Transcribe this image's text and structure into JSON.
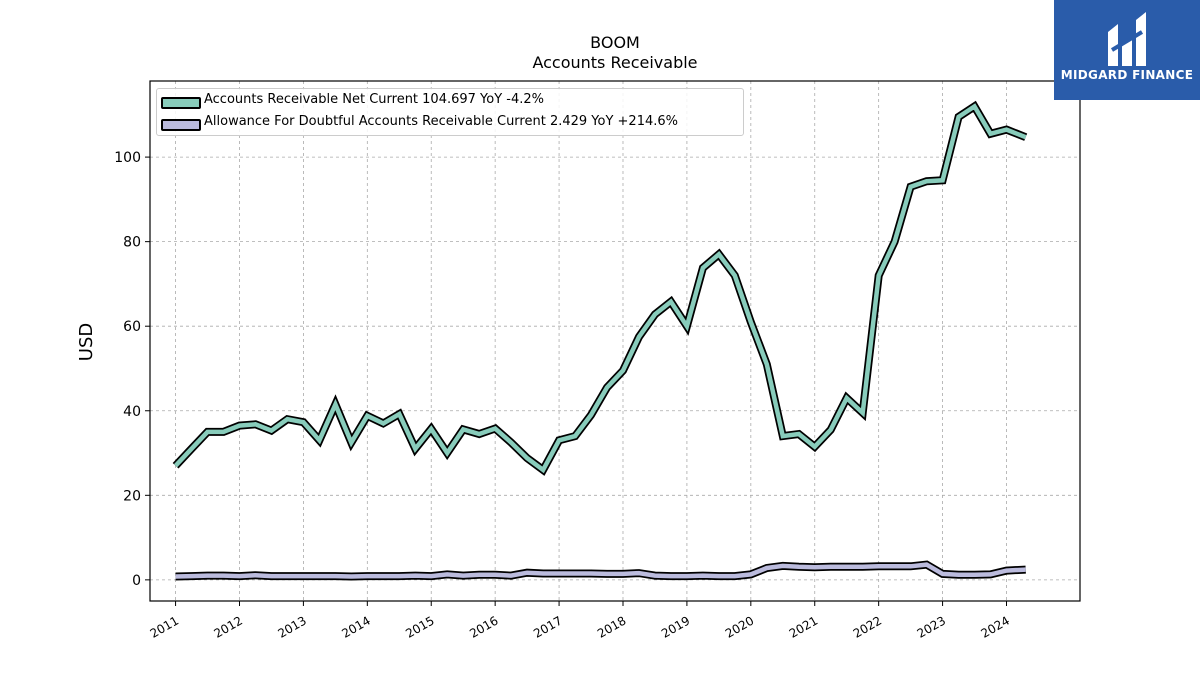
{
  "header": {
    "title": "BOOM",
    "subtitle": "Accounts Receivable"
  },
  "logo": {
    "brand_text": "MIDGARD FINANCE",
    "icon": "midgard-logo-icon",
    "background": "#2a5caa"
  },
  "chart_data": {
    "type": "line",
    "title": "BOOM",
    "subtitle": "Accounts Receivable",
    "xlabel": "",
    "ylabel": "USD",
    "ylim": [
      -5,
      118
    ],
    "xlim": [
      2010.6,
      2025.15
    ],
    "yticks": [
      0,
      20,
      40,
      60,
      80,
      100
    ],
    "xticks": [
      2011,
      2012,
      2013,
      2014,
      2015,
      2016,
      2017,
      2018,
      2019,
      2020,
      2021,
      2022,
      2023,
      2024
    ],
    "xtick_labels": [
      "2011",
      "2012",
      "2013",
      "2014",
      "2015",
      "2016",
      "2017",
      "2018",
      "2019",
      "2020",
      "2021",
      "2022",
      "2023",
      "2024"
    ],
    "grid": true,
    "legend_position": "top-left",
    "series": [
      {
        "name": "Accounts Receivable Net Current",
        "legend_label": "Accounts Receivable Net Current  104.697 YoY -4.2%",
        "color": "#88ccbb",
        "x": [
          2011.0,
          2011.25,
          2011.5,
          2011.75,
          2012.0,
          2012.25,
          2012.5,
          2012.75,
          2013.0,
          2013.25,
          2013.5,
          2013.75,
          2014.0,
          2014.25,
          2014.5,
          2014.75,
          2015.0,
          2015.25,
          2015.5,
          2015.75,
          2016.0,
          2016.25,
          2016.5,
          2016.75,
          2017.0,
          2017.25,
          2017.5,
          2017.75,
          2018.0,
          2018.25,
          2018.5,
          2018.75,
          2019.0,
          2019.25,
          2019.5,
          2019.75,
          2020.0,
          2020.25,
          2020.5,
          2020.75,
          2021.0,
          2021.25,
          2021.5,
          2021.75,
          2022.0,
          2022.25,
          2022.5,
          2022.75,
          2023.0,
          2023.25,
          2023.5,
          2023.75,
          2024.0,
          2024.3
        ],
        "y": [
          27,
          31,
          35,
          35,
          36.5,
          36.8,
          35.3,
          38,
          37.3,
          33,
          41.5,
          32.5,
          38.8,
          37,
          39.2,
          31,
          35.7,
          30,
          35.6,
          34.5,
          35.8,
          32.5,
          28.8,
          26,
          33,
          34,
          39,
          45.5,
          49.5,
          57.5,
          62.8,
          65.8,
          60,
          73.8,
          77,
          72,
          61,
          51,
          34,
          34.5,
          31.5,
          35.5,
          43,
          39.5,
          72,
          80,
          93,
          94.3,
          94.5,
          109.5,
          112,
          105.5,
          106.5,
          104.697
        ]
      },
      {
        "name": "Allowance For Doubtful Accounts Receivable Current",
        "legend_label": "Allowance For Doubtful Accounts Receivable Current  2.429 YoY +214.6%",
        "color": "#bbbbdd",
        "x": [
          2011.0,
          2011.25,
          2011.5,
          2011.75,
          2012.0,
          2012.25,
          2012.5,
          2012.75,
          2013.0,
          2013.25,
          2013.5,
          2013.75,
          2014.0,
          2014.25,
          2014.5,
          2014.75,
          2015.0,
          2015.25,
          2015.5,
          2015.75,
          2016.0,
          2016.25,
          2016.5,
          2016.75,
          2017.0,
          2017.25,
          2017.5,
          2017.75,
          2018.0,
          2018.25,
          2018.5,
          2018.75,
          2019.0,
          2019.25,
          2019.5,
          2019.75,
          2020.0,
          2020.25,
          2020.5,
          2020.75,
          2021.0,
          2021.25,
          2021.5,
          2021.75,
          2022.0,
          2022.25,
          2022.5,
          2022.75,
          2023.0,
          2023.25,
          2023.5,
          2023.75,
          2024.0,
          2024.3
        ],
        "y": [
          0.8,
          0.9,
          1.0,
          1.0,
          0.9,
          1.1,
          0.9,
          0.9,
          0.9,
          0.9,
          0.9,
          0.8,
          0.9,
          0.9,
          0.9,
          1.0,
          0.9,
          1.3,
          1.0,
          1.2,
          1.2,
          1.0,
          1.7,
          1.5,
          1.5,
          1.5,
          1.5,
          1.4,
          1.4,
          1.6,
          1.0,
          0.9,
          0.9,
          1.0,
          0.9,
          0.9,
          1.3,
          2.8,
          3.3,
          3.1,
          3.0,
          3.1,
          3.1,
          3.1,
          3.2,
          3.2,
          3.2,
          3.6,
          1.4,
          1.2,
          1.2,
          1.3,
          2.2,
          2.429
        ]
      }
    ]
  }
}
